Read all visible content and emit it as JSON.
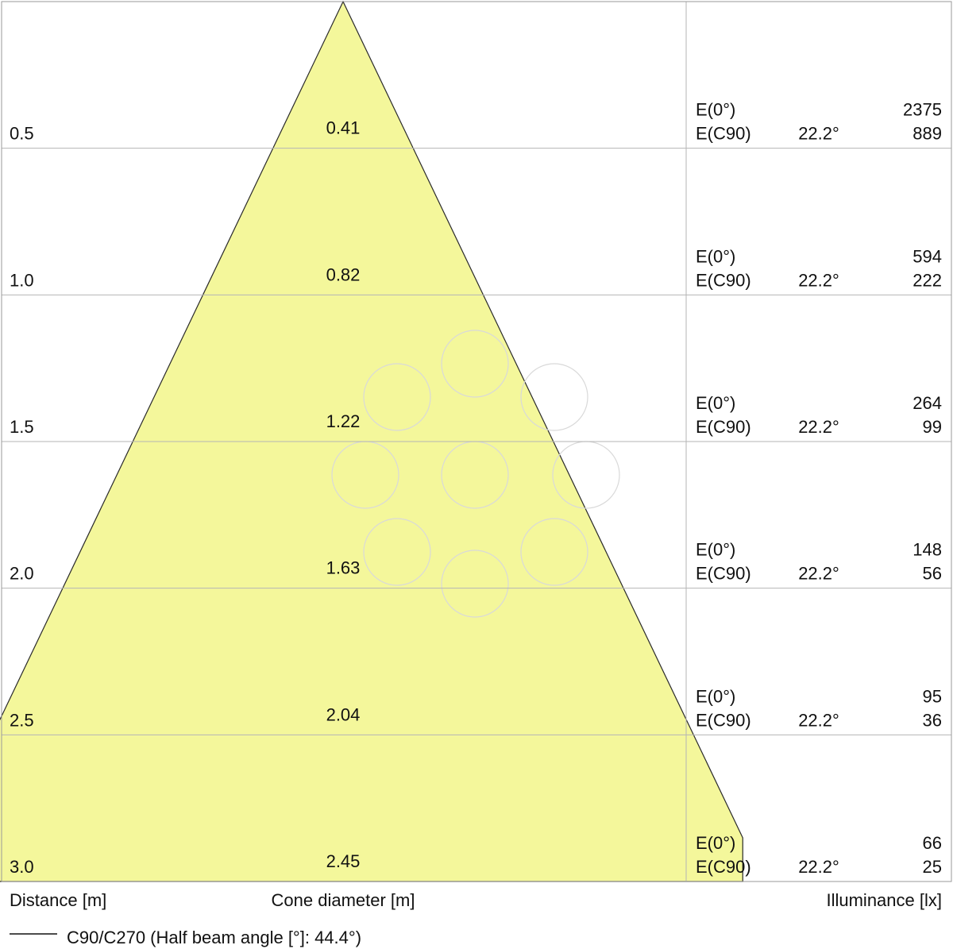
{
  "chart_data": {
    "type": "cone_diagram",
    "axis_labels": {
      "distance": "Distance [m]",
      "cone_diameter": "Cone diameter [m]",
      "illuminance": "Illuminance [lx]"
    },
    "legend": "C90/C270 (Half beam angle [°]: 44.4°)",
    "half_beam_angle_deg": 44.4,
    "row_label_e0": "E(0°)",
    "row_label_ec90": "E(C90)",
    "rows": [
      {
        "distance": "0.5",
        "diameter": "0.41",
        "angle": "22.2°",
        "e0": "2375",
        "ec90": "889"
      },
      {
        "distance": "1.0",
        "diameter": "0.82",
        "angle": "22.2°",
        "e0": "594",
        "ec90": "222"
      },
      {
        "distance": "1.5",
        "diameter": "1.22",
        "angle": "22.2°",
        "e0": "264",
        "ec90": "99"
      },
      {
        "distance": "2.0",
        "diameter": "1.63",
        "angle": "22.2°",
        "e0": "148",
        "ec90": "56"
      },
      {
        "distance": "2.5",
        "diameter": "2.04",
        "angle": "22.2°",
        "e0": "95",
        "ec90": "36"
      },
      {
        "distance": "3.0",
        "diameter": "2.45",
        "angle": "22.2°",
        "e0": "66",
        "ec90": "25"
      }
    ],
    "colors": {
      "cone_fill": "#f4f79b",
      "cone_stroke": "#2a2a2a",
      "grid": "#b5b5b5",
      "frame": "#9a9a9a",
      "watermark": "#d9d9d9"
    }
  }
}
